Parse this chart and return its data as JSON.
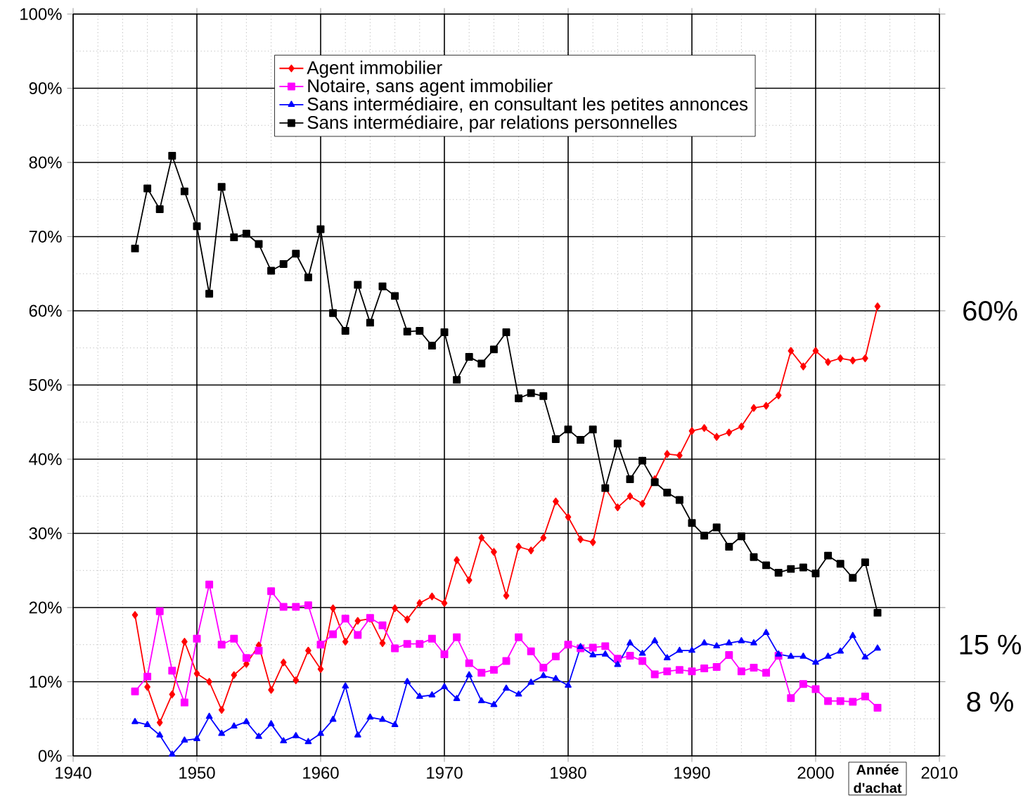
{
  "chart_data": {
    "type": "line",
    "xlabel": "Année d'achat",
    "x": [
      1945,
      1946,
      1947,
      1948,
      1949,
      1950,
      1951,
      1952,
      1953,
      1954,
      1955,
      1956,
      1957,
      1958,
      1959,
      1960,
      1961,
      1962,
      1963,
      1964,
      1965,
      1966,
      1967,
      1968,
      1969,
      1970,
      1971,
      1972,
      1973,
      1974,
      1975,
      1976,
      1977,
      1978,
      1979,
      1980,
      1981,
      1982,
      1983,
      1984,
      1985,
      1986,
      1987,
      1988,
      1989,
      1990,
      1991,
      1992,
      1993,
      1994,
      1995,
      1996,
      1997,
      1998,
      1999,
      2000,
      2001,
      2002,
      2003,
      2004,
      2005
    ],
    "series": [
      {
        "name": "Agent immobilier",
        "color": "#ff0000",
        "marker": "diamond",
        "values": [
          19.0,
          9.3,
          4.5,
          8.3,
          15.4,
          11.1,
          10.0,
          6.2,
          10.9,
          12.4,
          14.9,
          8.9,
          12.6,
          10.2,
          14.2,
          11.7,
          19.9,
          15.4,
          18.2,
          18.5,
          15.2,
          19.9,
          18.4,
          20.6,
          21.5,
          20.6,
          26.4,
          23.7,
          29.4,
          27.5,
          21.6,
          28.2,
          27.7,
          29.4,
          34.3,
          32.2,
          29.2,
          28.8,
          36.1,
          33.5,
          35.0,
          34.0,
          37.3,
          40.7,
          40.5,
          43.8,
          44.2,
          43.0,
          43.6,
          44.4,
          46.9,
          47.2,
          48.6,
          54.6,
          52.5,
          54.6,
          53.1,
          53.6,
          53.3,
          53.6,
          60.6
        ]
      },
      {
        "name": "Notaire, sans agent immobilier",
        "color": "#ff00ff",
        "marker": "square",
        "values": [
          8.7,
          10.7,
          19.5,
          11.5,
          7.2,
          15.8,
          23.1,
          15.0,
          15.8,
          13.2,
          14.2,
          22.2,
          20.1,
          20.1,
          20.3,
          15.0,
          16.4,
          18.5,
          16.3,
          18.6,
          17.6,
          14.5,
          15.1,
          15.1,
          15.8,
          13.7,
          16.0,
          12.5,
          11.2,
          11.6,
          12.8,
          16.0,
          14.1,
          11.9,
          13.4,
          15.0,
          14.5,
          14.6,
          14.8,
          13.1,
          13.5,
          12.8,
          11.0,
          11.4,
          11.6,
          11.4,
          11.8,
          12.0,
          13.6,
          11.4,
          11.9,
          11.2,
          13.5,
          7.8,
          9.7,
          9.0,
          7.4,
          7.4,
          7.3,
          8.0,
          6.5
        ]
      },
      {
        "name": "Sans intermédiaire, en consultant les petites annonces",
        "color": "#0000ff",
        "marker": "triangle",
        "values": [
          4.6,
          4.2,
          2.8,
          0.2,
          2.1,
          2.3,
          5.3,
          3.0,
          4.0,
          4.6,
          2.6,
          4.3,
          2.0,
          2.7,
          1.9,
          3.0,
          4.9,
          9.4,
          2.8,
          5.2,
          4.9,
          4.2,
          10.0,
          8.0,
          8.2,
          9.3,
          7.7,
          10.9,
          7.4,
          6.9,
          9.1,
          8.3,
          9.9,
          10.8,
          10.4,
          9.5,
          14.7,
          13.6,
          13.7,
          12.3,
          15.2,
          13.8,
          15.5,
          13.2,
          14.2,
          14.2,
          15.2,
          14.8,
          15.2,
          15.5,
          15.2,
          16.6,
          13.7,
          13.4,
          13.4,
          12.6,
          13.4,
          14.1,
          16.2,
          13.3,
          14.5
        ]
      },
      {
        "name": "Sans intermédiaire, par relations personnelles",
        "color": "#000000",
        "marker": "square",
        "values": [
          68.4,
          76.5,
          73.7,
          80.9,
          76.1,
          71.4,
          62.3,
          76.7,
          69.9,
          70.4,
          69.0,
          65.4,
          66.3,
          67.7,
          64.5,
          71.0,
          59.7,
          57.3,
          63.5,
          58.4,
          63.3,
          62.0,
          57.2,
          57.3,
          55.3,
          57.1,
          50.7,
          53.8,
          52.9,
          54.8,
          57.1,
          48.2,
          48.9,
          48.5,
          42.7,
          44.0,
          42.6,
          44.0,
          36.1,
          42.1,
          37.3,
          39.8,
          36.9,
          35.5,
          34.5,
          31.4,
          29.7,
          30.8,
          28.2,
          29.6,
          26.8,
          25.7,
          24.7,
          25.2,
          25.4,
          24.6,
          27.0,
          25.9,
          24.0,
          26.1,
          19.3
        ]
      }
    ],
    "xlim": [
      1940,
      2010
    ],
    "xticks": [
      1940,
      1950,
      1960,
      1970,
      1980,
      1990,
      2000,
      2010
    ],
    "ylim": [
      0,
      100
    ],
    "yticks": [
      {
        "value": 0,
        "label": "0%"
      },
      {
        "value": 10,
        "label": "10%"
      },
      {
        "value": 20,
        "label": "20%"
      },
      {
        "value": 30,
        "label": "30%"
      },
      {
        "value": 40,
        "label": "40%"
      },
      {
        "value": 50,
        "label": "50%"
      },
      {
        "value": 60,
        "label": "60%"
      },
      {
        "value": 70,
        "label": "70%"
      },
      {
        "value": 80,
        "label": "80%"
      },
      {
        "value": 90,
        "label": "90%"
      },
      {
        "value": 100,
        "label": "100%"
      }
    ],
    "annotations": [
      "60%",
      "15 %",
      "8 %"
    ],
    "grid": true,
    "legend": "top",
    "line_style": "solid"
  }
}
